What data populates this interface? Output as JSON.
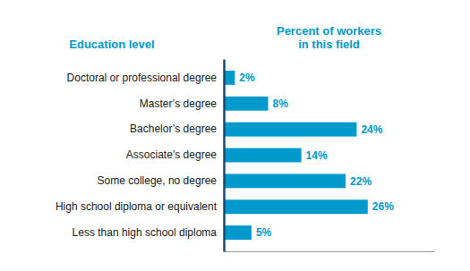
{
  "chart_data": {
    "type": "bar",
    "orientation": "horizontal",
    "xlabel": "Percent of workers\nin this field",
    "ylabel": "Education level",
    "categories": [
      "Less than high school diploma",
      "High school diploma or equivalent",
      "Some college, no degree",
      "Associate’s degree",
      "Bachelor’s degree",
      "Master’s degree",
      "Doctoral or professional degree"
    ],
    "values": [
      5,
      26,
      22,
      14,
      24,
      8,
      2
    ],
    "value_labels": [
      "5%",
      "26%",
      "22%",
      "14%",
      "24%",
      "8%",
      "2%"
    ],
    "color": "#0099cc",
    "xlim": [
      0,
      38
    ],
    "data_labels": true,
    "tick_labels": "y",
    "grid": false
  }
}
